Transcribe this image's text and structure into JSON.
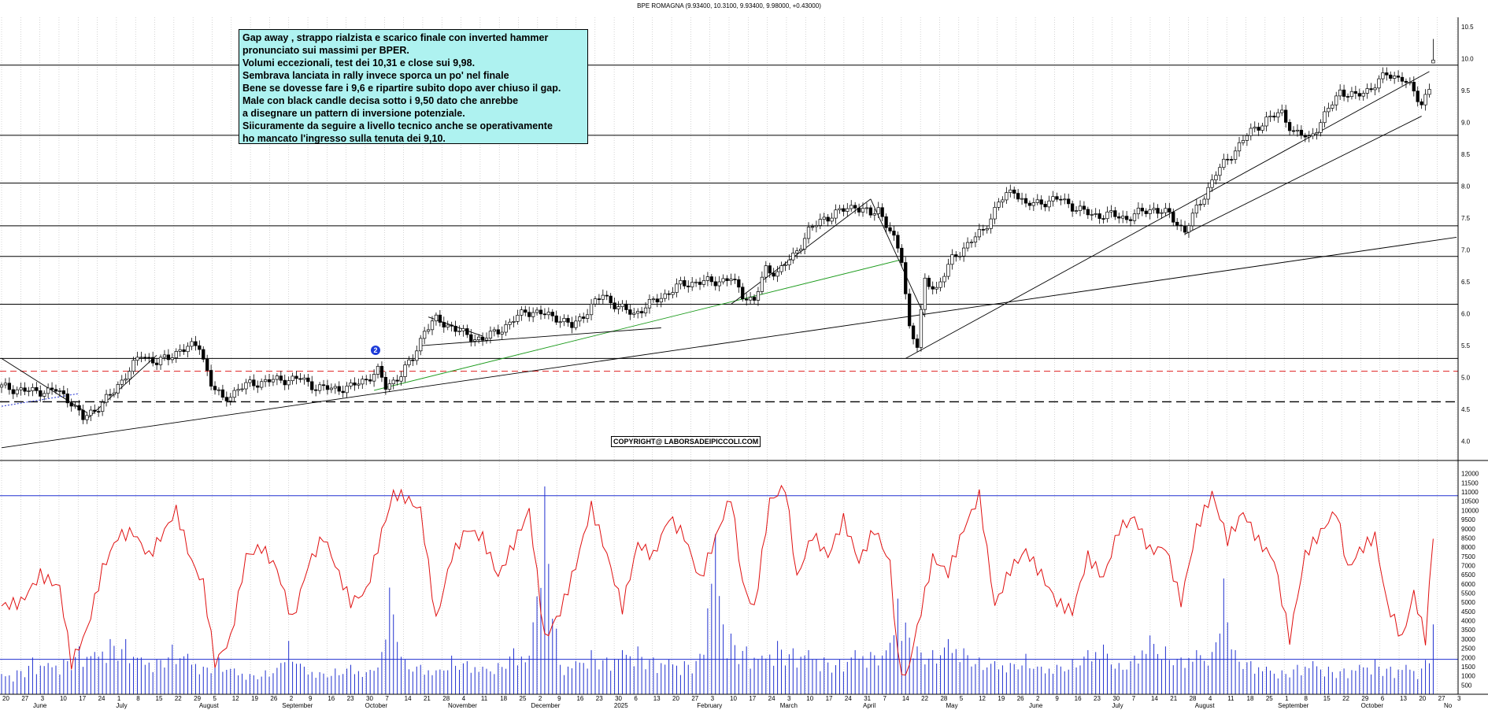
{
  "header": {
    "title": "BPE ROMAGNA (9.93400, 10.3100, 9.93400, 9.98000, +0.43000)"
  },
  "annotation": {
    "lines": [
      "Gap away , strappo rialzista e scarico finale con inverted hammer",
      "pronunciato sui massimi per BPER.",
      "Volumi eccezionali, test dei 10,31 e close sui 9,98.",
      "Sembrava lanciata in rally invece sporca un po' nel finale",
      "Bene se dovesse fare i 9,6 e ripartire subito dopo aver chiuso il gap.",
      "Male con black candle decisa sotto i 9,50 dato che anrebbe",
      "a disegnare un pattern di inversione potenziale.",
      "Siicuramente da seguire a livello tecnico anche se operativamente",
      "ho mancato l'ingresso sulla tenuta dei 9,10."
    ]
  },
  "copyright": "COPYRIGHT@ LABORSADEIPICCOLI.COM",
  "wave_label": "2",
  "colors": {
    "candle": "#000000",
    "trendline": "#000000",
    "green_trendline": "#1a9a1a",
    "red_dashed": "#e02020",
    "blue_dotted": "#2030d0",
    "oscillator": "#e01010",
    "volume": "#2030d0",
    "vol_bands": "#2030d0",
    "note_bg": "#aef2f0",
    "grid": "#b8b8b8"
  },
  "chart_data": {
    "type": "candlestick",
    "symbol": "BPE ROMAGNA",
    "last_bar": {
      "open": 9.934,
      "high": 10.31,
      "low": 9.934,
      "close": 9.98,
      "change": 0.43
    },
    "price_axis": {
      "ylim": [
        3.7,
        10.65
      ],
      "ticks": [
        "4.0",
        "4.5",
        "5.0",
        "5.5",
        "6.0",
        "6.5",
        "7.0",
        "7.5",
        "8.0",
        "8.5",
        "9.0",
        "9.5",
        "10.0",
        "10.5"
      ]
    },
    "volume_axis": {
      "ylim": [
        0,
        12500
      ],
      "ticks": [
        "500",
        "1000",
        "1500",
        "2000",
        "2500",
        "3000",
        "3500",
        "4000",
        "4500",
        "5000",
        "5500",
        "6000",
        "6500",
        "7000",
        "7500",
        "8000",
        "8500",
        "9000",
        "9500",
        "10000",
        "10500",
        "11000",
        "11500",
        "12000"
      ],
      "bands": [
        1900,
        10800
      ]
    },
    "x_month_labels": [
      "June",
      "July",
      "August",
      "September",
      "October",
      "November",
      "December",
      "2025",
      "February",
      "March",
      "April",
      "May",
      "June",
      "July",
      "August",
      "September",
      "October",
      "No"
    ],
    "x_day_labels": [
      "20",
      "27",
      "3",
      "10",
      "17",
      "24",
      "1",
      "8",
      "15",
      "22",
      "29",
      "5",
      "12",
      "19",
      "26",
      "2",
      "9",
      "16",
      "23",
      "30",
      "7",
      "14",
      "21",
      "28",
      "4",
      "11",
      "18",
      "25",
      "2",
      "9",
      "16",
      "23",
      "30",
      "6",
      "13",
      "20",
      "27",
      "3",
      "10",
      "17",
      "24",
      "3",
      "10",
      "17",
      "24",
      "31",
      "7",
      "14",
      "22",
      "28",
      "5",
      "12",
      "19",
      "26",
      "2",
      "9",
      "16",
      "23",
      "30",
      "7",
      "14",
      "21",
      "28",
      "4",
      "11",
      "18",
      "25",
      "1",
      "8",
      "15",
      "22",
      "29",
      "6",
      "13",
      "20",
      "27",
      "3"
    ],
    "price_path": [
      [
        0,
        4.85
      ],
      [
        8,
        4.78
      ],
      [
        14,
        4.8
      ],
      [
        18,
        4.62
      ],
      [
        21,
        4.35
      ],
      [
        25,
        4.55
      ],
      [
        29,
        4.78
      ],
      [
        32,
        5.05
      ],
      [
        36,
        5.35
      ],
      [
        40,
        5.25
      ],
      [
        43,
        5.3
      ],
      [
        46,
        5.45
      ],
      [
        51,
        5.5
      ],
      [
        54,
        4.9
      ],
      [
        57,
        4.65
      ],
      [
        61,
        4.82
      ],
      [
        64,
        4.9
      ],
      [
        69,
        4.95
      ],
      [
        73,
        4.97
      ],
      [
        77,
        4.98
      ],
      [
        81,
        4.85
      ],
      [
        85,
        4.82
      ],
      [
        90,
        4.85
      ],
      [
        94,
        4.98
      ],
      [
        97,
        5.1
      ],
      [
        99,
        4.85
      ],
      [
        103,
        5.05
      ],
      [
        106,
        5.3
      ],
      [
        109,
        5.75
      ],
      [
        112,
        5.9
      ],
      [
        116,
        5.8
      ],
      [
        120,
        5.65
      ],
      [
        124,
        5.6
      ],
      [
        127,
        5.7
      ],
      [
        131,
        5.85
      ],
      [
        135,
        6.05
      ],
      [
        139,
        6.0
      ],
      [
        143,
        5.95
      ],
      [
        147,
        5.8
      ],
      [
        151,
        6.05
      ],
      [
        155,
        6.3
      ],
      [
        159,
        6.1
      ],
      [
        163,
        6.0
      ],
      [
        167,
        6.15
      ],
      [
        171,
        6.3
      ],
      [
        175,
        6.45
      ],
      [
        179,
        6.5
      ],
      [
        183,
        6.5
      ],
      [
        188,
        6.55
      ],
      [
        191,
        6.3
      ],
      [
        194,
        6.2
      ],
      [
        197,
        6.7
      ],
      [
        200,
        6.65
      ],
      [
        204,
        6.9
      ],
      [
        208,
        7.3
      ],
      [
        212,
        7.5
      ],
      [
        216,
        7.6
      ],
      [
        220,
        7.7
      ],
      [
        224,
        7.55
      ],
      [
        226,
        7.65
      ],
      [
        229,
        7.3
      ],
      [
        232,
        6.85
      ],
      [
        234,
        5.8
      ],
      [
        236,
        5.5
      ],
      [
        238,
        6.5
      ],
      [
        241,
        6.4
      ],
      [
        245,
        6.85
      ],
      [
        249,
        7.1
      ],
      [
        253,
        7.3
      ],
      [
        257,
        7.75
      ],
      [
        261,
        7.95
      ],
      [
        264,
        7.7
      ],
      [
        268,
        7.75
      ],
      [
        273,
        7.8
      ],
      [
        277,
        7.65
      ],
      [
        281,
        7.55
      ],
      [
        286,
        7.55
      ],
      [
        290,
        7.5
      ],
      [
        294,
        7.6
      ],
      [
        297,
        7.65
      ],
      [
        301,
        7.55
      ],
      [
        305,
        7.3
      ],
      [
        309,
        7.75
      ],
      [
        313,
        8.2
      ],
      [
        317,
        8.5
      ],
      [
        321,
        8.8
      ],
      [
        326,
        9.05
      ],
      [
        330,
        9.15
      ],
      [
        333,
        8.85
      ],
      [
        337,
        8.75
      ],
      [
        341,
        9.1
      ],
      [
        345,
        9.5
      ],
      [
        349,
        9.4
      ],
      [
        353,
        9.55
      ],
      [
        357,
        9.75
      ],
      [
        361,
        9.7
      ],
      [
        363,
        9.55
      ],
      [
        366,
        9.3
      ],
      [
        368,
        9.55
      ],
      [
        369,
        9.98
      ]
    ],
    "horizontal_levels": [
      {
        "value": 5.3,
        "style": "solid"
      },
      {
        "value": 5.1,
        "style": "red-dashed"
      },
      {
        "value": 4.62,
        "style": "dashed"
      },
      {
        "value": 6.15,
        "style": "solid"
      },
      {
        "value": 6.9,
        "style": "solid"
      },
      {
        "value": 7.38,
        "style": "solid"
      },
      {
        "value": 8.05,
        "style": "solid"
      },
      {
        "value": 8.8,
        "style": "solid"
      },
      {
        "value": 9.9,
        "style": "solid"
      }
    ],
    "oscillator_path": [
      [
        0,
        4800
      ],
      [
        5,
        5000
      ],
      [
        10,
        6500
      ],
      [
        15,
        5800
      ],
      [
        18,
        1700
      ],
      [
        22,
        3500
      ],
      [
        26,
        6800
      ],
      [
        30,
        8600
      ],
      [
        34,
        8800
      ],
      [
        38,
        7500
      ],
      [
        42,
        8900
      ],
      [
        45,
        10000
      ],
      [
        49,
        7200
      ],
      [
        52,
        6000
      ],
      [
        55,
        1700
      ],
      [
        59,
        3000
      ],
      [
        63,
        7500
      ],
      [
        67,
        8000
      ],
      [
        71,
        6800
      ],
      [
        75,
        4000
      ],
      [
        79,
        7000
      ],
      [
        83,
        8600
      ],
      [
        87,
        6500
      ],
      [
        90,
        5000
      ],
      [
        94,
        5600
      ],
      [
        98,
        8800
      ],
      [
        101,
        10900
      ],
      [
        104,
        10700
      ],
      [
        108,
        10000
      ],
      [
        112,
        4000
      ],
      [
        116,
        7500
      ],
      [
        120,
        9000
      ],
      [
        124,
        8500
      ],
      [
        128,
        6400
      ],
      [
        132,
        8200
      ],
      [
        136,
        10000
      ],
      [
        140,
        3000
      ],
      [
        144,
        4500
      ],
      [
        148,
        7000
      ],
      [
        152,
        10200
      ],
      [
        156,
        7600
      ],
      [
        160,
        4700
      ],
      [
        164,
        8200
      ],
      [
        168,
        7500
      ],
      [
        172,
        9600
      ],
      [
        176,
        8600
      ],
      [
        180,
        6200
      ],
      [
        184,
        8500
      ],
      [
        188,
        10800
      ],
      [
        191,
        6000
      ],
      [
        194,
        4600
      ],
      [
        198,
        10500
      ],
      [
        202,
        11300
      ],
      [
        205,
        6300
      ],
      [
        209,
        8700
      ],
      [
        213,
        7500
      ],
      [
        217,
        9500
      ],
      [
        221,
        7200
      ],
      [
        225,
        9000
      ],
      [
        229,
        7100
      ],
      [
        231,
        2000
      ],
      [
        233,
        800
      ],
      [
        236,
        3600
      ],
      [
        240,
        7400
      ],
      [
        244,
        6600
      ],
      [
        248,
        9000
      ],
      [
        252,
        10800
      ],
      [
        256,
        4800
      ],
      [
        260,
        6800
      ],
      [
        264,
        7800
      ],
      [
        268,
        6500
      ],
      [
        272,
        5000
      ],
      [
        276,
        4500
      ],
      [
        280,
        7500
      ],
      [
        284,
        6300
      ],
      [
        288,
        9000
      ],
      [
        292,
        9600
      ],
      [
        296,
        7800
      ],
      [
        300,
        8000
      ],
      [
        304,
        5000
      ],
      [
        308,
        9000
      ],
      [
        312,
        10900
      ],
      [
        316,
        8400
      ],
      [
        320,
        9900
      ],
      [
        324,
        8300
      ],
      [
        328,
        7300
      ],
      [
        332,
        3000
      ],
      [
        336,
        7600
      ],
      [
        340,
        8800
      ],
      [
        344,
        10000
      ],
      [
        347,
        6800
      ],
      [
        350,
        7800
      ],
      [
        354,
        8600
      ],
      [
        357,
        5000
      ],
      [
        361,
        3000
      ],
      [
        364,
        5500
      ],
      [
        367,
        3000
      ],
      [
        369,
        8600
      ]
    ],
    "volume_bars": [
      [
        0,
        1100
      ],
      [
        4,
        1300
      ],
      [
        8,
        2000
      ],
      [
        12,
        1700
      ],
      [
        16,
        1900
      ],
      [
        20,
        2600
      ],
      [
        24,
        2300
      ],
      [
        28,
        3000
      ],
      [
        32,
        3000
      ],
      [
        36,
        2000
      ],
      [
        40,
        1900
      ],
      [
        44,
        2700
      ],
      [
        48,
        2200
      ],
      [
        52,
        1500
      ],
      [
        56,
        2000
      ],
      [
        60,
        1400
      ],
      [
        64,
        1100
      ],
      [
        68,
        1300
      ],
      [
        72,
        1700
      ],
      [
        74,
        2900
      ],
      [
        78,
        1500
      ],
      [
        82,
        1200
      ],
      [
        86,
        1400
      ],
      [
        90,
        1600
      ],
      [
        94,
        1200
      ],
      [
        98,
        2300
      ],
      [
        100,
        5800
      ],
      [
        104,
        1900
      ],
      [
        108,
        1600
      ],
      [
        112,
        1300
      ],
      [
        116,
        2100
      ],
      [
        120,
        1800
      ],
      [
        124,
        1500
      ],
      [
        128,
        1700
      ],
      [
        132,
        2500
      ],
      [
        136,
        2100
      ],
      [
        140,
        11300
      ],
      [
        144,
        1600
      ],
      [
        148,
        1800
      ],
      [
        152,
        2400
      ],
      [
        156,
        2000
      ],
      [
        160,
        2400
      ],
      [
        164,
        2600
      ],
      [
        168,
        2000
      ],
      [
        172,
        1900
      ],
      [
        176,
        1800
      ],
      [
        180,
        2200
      ],
      [
        184,
        8700
      ],
      [
        186,
        3800
      ],
      [
        188,
        3300
      ],
      [
        192,
        2600
      ],
      [
        196,
        2100
      ],
      [
        200,
        2900
      ],
      [
        204,
        2500
      ],
      [
        208,
        2400
      ],
      [
        212,
        2000
      ],
      [
        216,
        1900
      ],
      [
        220,
        2400
      ],
      [
        224,
        2300
      ],
      [
        229,
        2800
      ],
      [
        231,
        5200
      ],
      [
        233,
        3900
      ],
      [
        236,
        2600
      ],
      [
        240,
        2400
      ],
      [
        244,
        3000
      ],
      [
        248,
        2500
      ],
      [
        252,
        2000
      ],
      [
        256,
        1800
      ],
      [
        260,
        1700
      ],
      [
        264,
        2200
      ],
      [
        268,
        1500
      ],
      [
        272,
        1600
      ],
      [
        276,
        1900
      ],
      [
        280,
        2400
      ],
      [
        284,
        2700
      ],
      [
        288,
        1700
      ],
      [
        292,
        2100
      ],
      [
        296,
        3200
      ],
      [
        300,
        2600
      ],
      [
        304,
        2000
      ],
      [
        308,
        2400
      ],
      [
        312,
        2300
      ],
      [
        315,
        6300
      ],
      [
        318,
        2400
      ],
      [
        322,
        1800
      ],
      [
        326,
        1500
      ],
      [
        330,
        1300
      ],
      [
        334,
        1600
      ],
      [
        338,
        1800
      ],
      [
        342,
        1500
      ],
      [
        346,
        1400
      ],
      [
        350,
        1600
      ],
      [
        354,
        1900
      ],
      [
        358,
        1500
      ],
      [
        362,
        1600
      ],
      [
        366,
        1400
      ],
      [
        369,
        3800
      ]
    ],
    "total_bars": 376
  }
}
